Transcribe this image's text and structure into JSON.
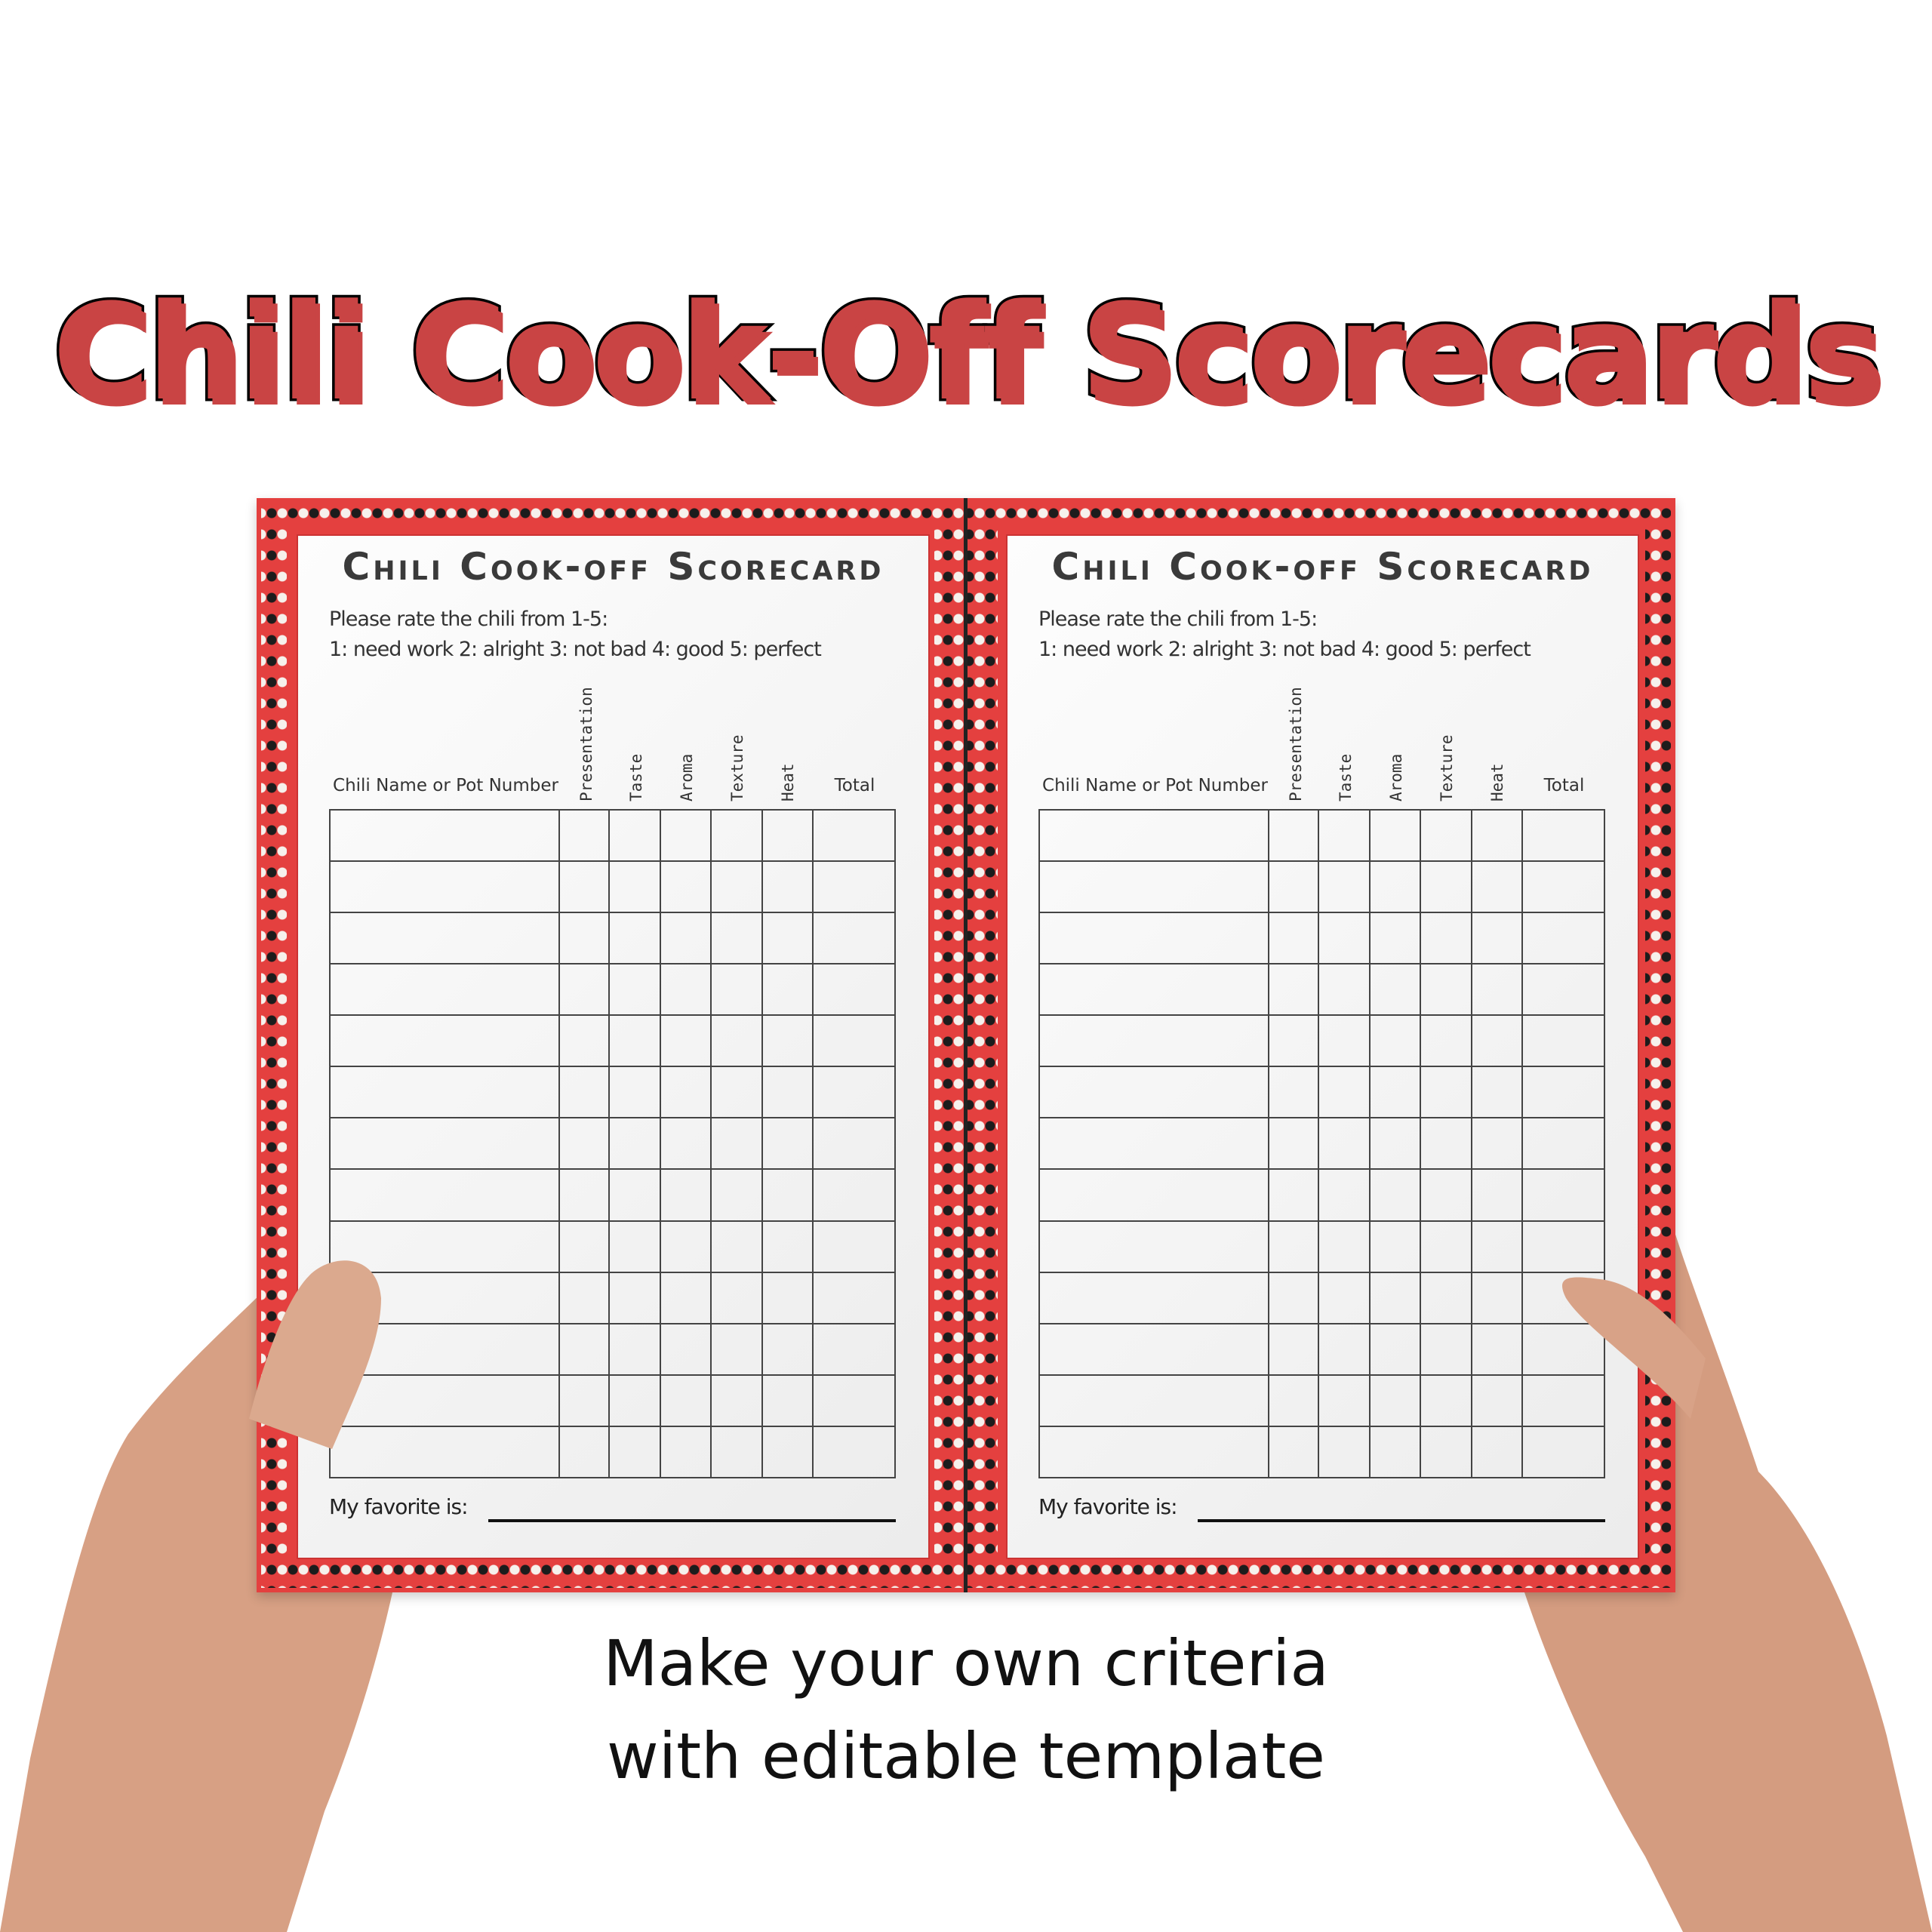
{
  "headline": "Chili Cook-Off Scorecards",
  "colors": {
    "accent_red": "#e4403f",
    "headline_red": "#c94444",
    "dot_dark": "#1c1c1c",
    "dot_light": "#f6f1ec"
  },
  "cards": [
    {
      "title": "Chili Cook-off Scorecard",
      "instruction_line1": "Please rate the chili from 1-5:",
      "instruction_line2": "1: need work  2: alright  3: not bad  4: good  5: perfect",
      "name_header": "Chili Name or Pot Number",
      "criteria": [
        "Presentation",
        "Taste",
        "Aroma",
        "Texture",
        "Heat"
      ],
      "total_header": "Total",
      "row_count": 13,
      "favorite_label": "My favorite is:"
    },
    {
      "title": "Chili Cook-off Scorecard",
      "instruction_line1": "Please rate the chili from 1-5:",
      "instruction_line2": "1: need work  2: alright  3: not bad  4: good  5: perfect",
      "name_header": "Chili Name or Pot Number",
      "criteria": [
        "Presentation",
        "Taste",
        "Aroma",
        "Texture",
        "Heat"
      ],
      "total_header": "Total",
      "row_count": 13,
      "favorite_label": "My favorite is:"
    }
  ],
  "caption": {
    "line1": "Make your own criteria",
    "line2": "with editable template"
  }
}
